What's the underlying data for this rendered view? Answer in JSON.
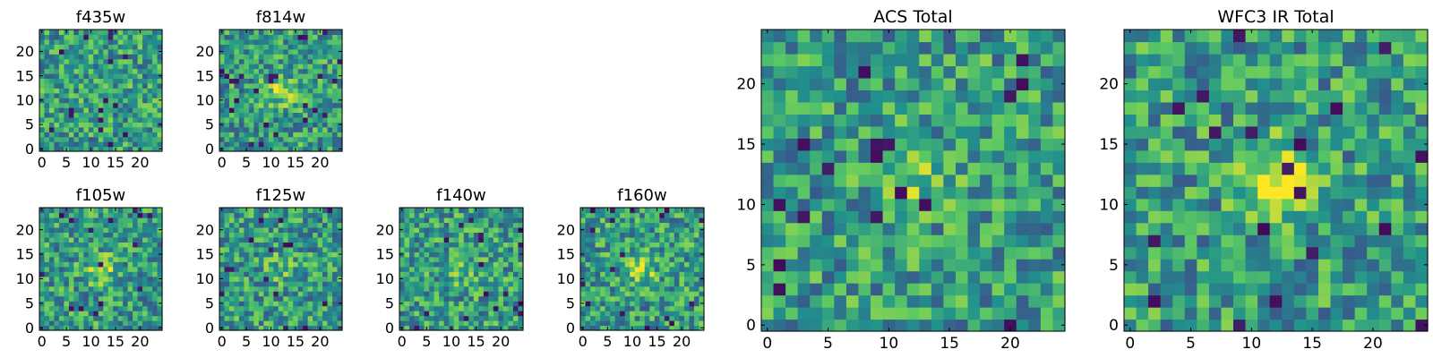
{
  "figure": {
    "colormap": "viridis",
    "grid_size": 25,
    "panels": [
      {
        "title": "f435w",
        "type": "heatmap",
        "xticks": [
          0,
          5,
          10,
          15,
          20
        ],
        "yticks": [
          0,
          5,
          10,
          15,
          20
        ],
        "xlim": [
          0,
          25
        ],
        "ylim": [
          0,
          25
        ],
        "seed": 11,
        "center_brightness": 0.05,
        "dark_fraction": 0.03
      },
      {
        "title": "f814w",
        "type": "heatmap",
        "xticks": [
          0,
          5,
          10,
          15,
          20
        ],
        "yticks": [
          0,
          5,
          10,
          15,
          20
        ],
        "xlim": [
          0,
          25
        ],
        "ylim": [
          0,
          25
        ],
        "seed": 23,
        "center_brightness": 0.35,
        "dark_fraction": 0.03
      },
      {
        "title": "ACS Total",
        "type": "heatmap",
        "xticks": [
          0,
          5,
          10,
          15,
          20
        ],
        "yticks": [
          0,
          5,
          10,
          15,
          20
        ],
        "xlim": [
          0,
          25
        ],
        "ylim": [
          0,
          25
        ],
        "seed": 37,
        "center_brightness": 0.2,
        "dark_fraction": 0.03
      },
      {
        "title": "WFC3 IR Total",
        "type": "heatmap",
        "xticks": [
          0,
          5,
          10,
          15,
          20
        ],
        "yticks": [
          0,
          5,
          10,
          15,
          20
        ],
        "xlim": [
          0,
          25
        ],
        "ylim": [
          0,
          25
        ],
        "seed": 41,
        "center_brightness": 0.45,
        "dark_fraction": 0.035
      },
      {
        "title": "f105w",
        "type": "heatmap",
        "xticks": [
          0,
          5,
          10,
          15,
          20
        ],
        "yticks": [
          0,
          5,
          10,
          15,
          20
        ],
        "xlim": [
          0,
          25
        ],
        "ylim": [
          0,
          25
        ],
        "seed": 53,
        "center_brightness": 0.3,
        "dark_fraction": 0.03
      },
      {
        "title": "f125w",
        "type": "heatmap",
        "xticks": [
          0,
          5,
          10,
          15,
          20
        ],
        "yticks": [
          0,
          5,
          10,
          15,
          20
        ],
        "xlim": [
          0,
          25
        ],
        "ylim": [
          0,
          25
        ],
        "seed": 67,
        "center_brightness": 0.15,
        "dark_fraction": 0.02
      },
      {
        "title": "f140w",
        "type": "heatmap",
        "xticks": [
          0,
          5,
          10,
          15,
          20
        ],
        "yticks": [
          0,
          5,
          10,
          15,
          20
        ],
        "xlim": [
          0,
          25
        ],
        "ylim": [
          0,
          25
        ],
        "seed": 79,
        "center_brightness": 0.2,
        "dark_fraction": 0.035
      },
      {
        "title": "f160w",
        "type": "heatmap",
        "xticks": [
          0,
          5,
          10,
          15,
          20
        ],
        "yticks": [
          0,
          5,
          10,
          15,
          20
        ],
        "xlim": [
          0,
          25
        ],
        "ylim": [
          0,
          25
        ],
        "seed": 97,
        "center_brightness": 0.3,
        "dark_fraction": 0.035
      }
    ]
  }
}
